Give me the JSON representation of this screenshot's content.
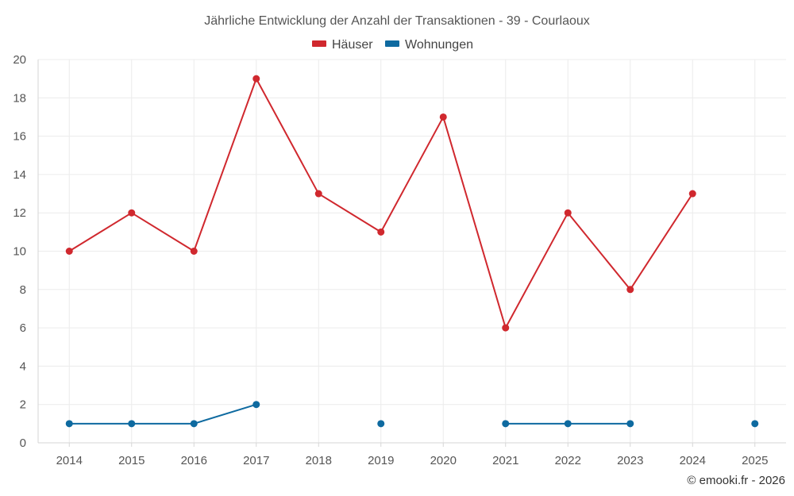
{
  "chart_data": {
    "type": "line",
    "title": "Jährliche Entwicklung der Anzahl der Transaktionen - 39 - Courlaoux",
    "categories": [
      "2014",
      "2015",
      "2016",
      "2017",
      "2018",
      "2019",
      "2020",
      "2021",
      "2022",
      "2023",
      "2024",
      "2025"
    ],
    "y_ticks": [
      "0",
      "2",
      "4",
      "6",
      "8",
      "10",
      "12",
      "14",
      "16",
      "18",
      "20"
    ],
    "ylim": [
      0,
      20
    ],
    "grid": true,
    "legend_position": "top-center",
    "series": [
      {
        "name": "Häuser",
        "color": "#d0282e",
        "values": [
          10,
          12,
          10,
          19,
          13,
          11,
          17,
          6,
          12,
          8,
          13,
          null
        ]
      },
      {
        "name": "Wohnungen",
        "color": "#0e6aa0",
        "values": [
          1,
          1,
          1,
          2,
          null,
          1,
          null,
          1,
          1,
          1,
          null,
          1
        ]
      }
    ],
    "credit": "© emooki.fr - 2026"
  }
}
